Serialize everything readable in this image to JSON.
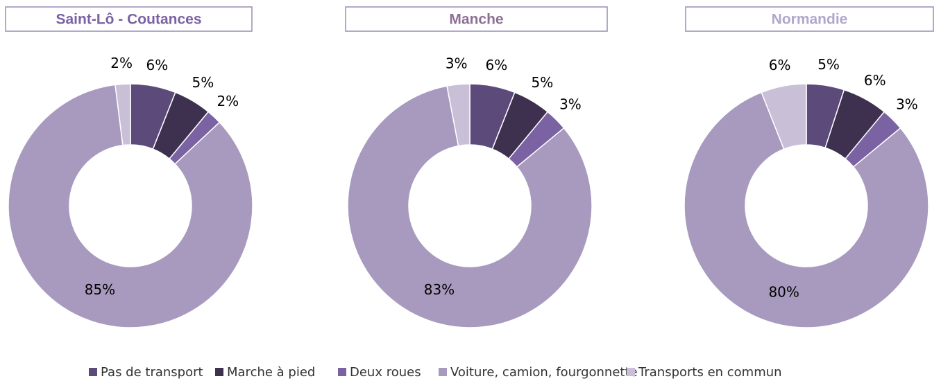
{
  "chart_data": {
    "type": "donut",
    "categories": [
      "Pas de transport",
      "Marche à pied",
      "Deux roues",
      "Voiture, camion, fourgonnette",
      "Transports en commun"
    ],
    "colors": [
      "#5c4a7a",
      "#3e3150",
      "#7b62a3",
      "#a89abe",
      "#c9c0d8"
    ],
    "series": [
      {
        "name": "Saint-Lô - Coutances",
        "color": "#7b62a3",
        "values": [
          6,
          5,
          2,
          85,
          2
        ],
        "value_labels": [
          "6%",
          "5%",
          "2%",
          "85%",
          "2%"
        ]
      },
      {
        "name": "Manche",
        "color": "#8e6f94",
        "values": [
          6,
          5,
          3,
          83,
          3
        ],
        "value_labels": [
          "6%",
          "5%",
          "3%",
          "83%",
          "3%"
        ]
      },
      {
        "name": "Normandie",
        "color": "#b1a7cc",
        "values": [
          5,
          6,
          3,
          80,
          6
        ],
        "value_labels": [
          "5%",
          "6%",
          "3%",
          "80%",
          "6%"
        ]
      }
    ]
  }
}
